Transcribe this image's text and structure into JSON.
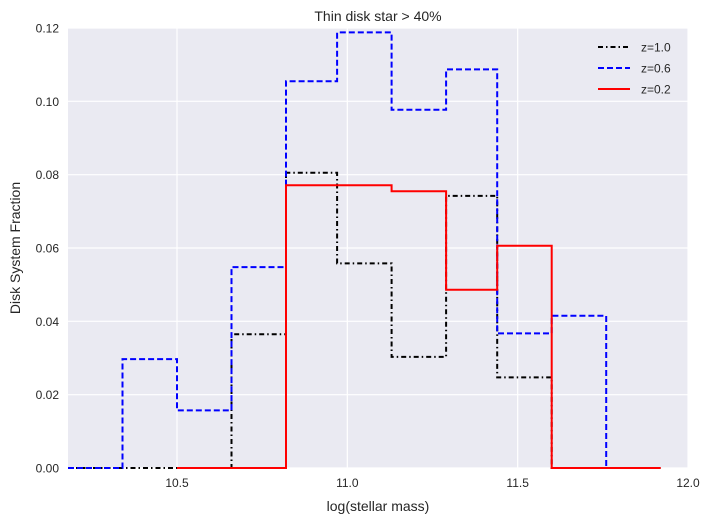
{
  "chart_data": {
    "type": "line",
    "title": "Thin disk star > 40%",
    "xlabel": "log(stellar mass)",
    "ylabel": "Disk System Fraction",
    "xlim": [
      10.18,
      12.0
    ],
    "ylim": [
      0.0,
      0.12
    ],
    "xticks": [
      10.5,
      11.0,
      11.5,
      12.0
    ],
    "xtick_labels": [
      "10.5",
      "11.0",
      "11.5",
      "12.0"
    ],
    "yticks": [
      0.0,
      0.02,
      0.04,
      0.06,
      0.08,
      0.1,
      0.12
    ],
    "ytick_labels": [
      "0.00",
      "0.02",
      "0.04",
      "0.06",
      "0.08",
      "0.10",
      "0.12"
    ],
    "grid": true,
    "legend_position": "top-right",
    "step_style": "post",
    "series": [
      {
        "name": "z=1.0",
        "color": "#000000",
        "linestyle": "dash-dot",
        "x": [
          10.18,
          10.34,
          10.5,
          10.66,
          10.82,
          10.97,
          11.13,
          11.29,
          11.44,
          11.6,
          11.76,
          11.92
        ],
        "y": [
          0.0,
          0.0,
          0.0,
          0.0365,
          0.0805,
          0.0558,
          0.0303,
          0.0742,
          0.0247,
          0.0,
          0.0,
          0.0
        ]
      },
      {
        "name": "z=0.6",
        "color": "#0000ff",
        "linestyle": "dashed",
        "x": [
          10.18,
          10.34,
          10.5,
          10.66,
          10.82,
          10.97,
          11.13,
          11.29,
          11.44,
          11.6,
          11.76,
          11.92
        ],
        "y": [
          0.0,
          0.0297,
          0.0157,
          0.0548,
          0.1055,
          0.1188,
          0.0977,
          0.1087,
          0.0367,
          0.0415,
          0.0,
          0.0
        ]
      },
      {
        "name": "z=0.2",
        "color": "#ff0000",
        "linestyle": "solid",
        "x": [
          10.5,
          10.66,
          10.82,
          10.97,
          11.13,
          11.29,
          11.44,
          11.6,
          11.76,
          11.92
        ],
        "y": [
          0.0,
          0.0,
          0.0771,
          0.0771,
          0.0755,
          0.0486,
          0.0606,
          0.0,
          0.0,
          0.0
        ]
      }
    ]
  }
}
